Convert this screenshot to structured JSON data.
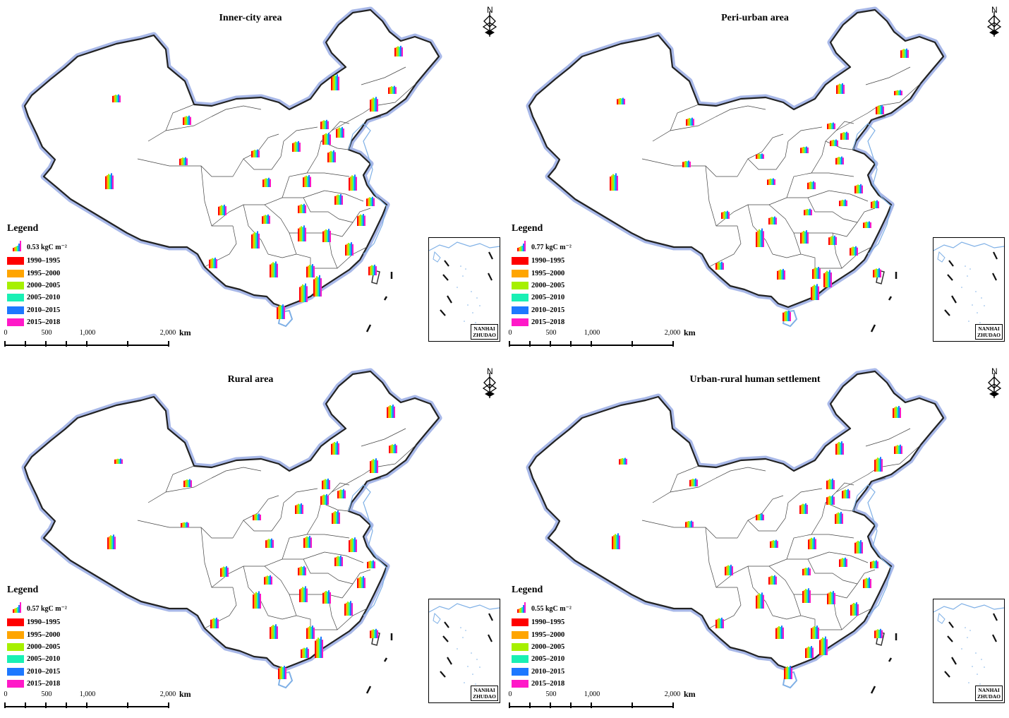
{
  "colors": {
    "period_colors": [
      "#ff0000",
      "#ffa500",
      "#a6f000",
      "#19f0b4",
      "#1e78ff",
      "#ff19c8"
    ],
    "boundary": "#222222",
    "coast_halo": "#a8b8e8",
    "water": "#7fb0e6"
  },
  "legend": {
    "title": "Legend",
    "periods": [
      "1990–1995",
      "1995–2000",
      "2000–2005",
      "2005–2010",
      "2010–2015",
      "2015–2018"
    ]
  },
  "north_label": "N",
  "inset_label": [
    "NANHAI",
    "ZHUDAO"
  ],
  "scale": {
    "labels": [
      "0",
      "500",
      "1,000",
      "2,000"
    ],
    "unit": "km"
  },
  "panels": [
    {
      "title": "Inner-city area",
      "scale_value": "0.53 kgC m⁻²"
    },
    {
      "title": "Peri-urban area",
      "scale_value": "0.77 kgC m⁻²"
    },
    {
      "title": "Rural area",
      "scale_value": "0.57 kgC m⁻²"
    },
    {
      "title": "Urban-rural human settlement",
      "scale_value": "0.55 kgC m⁻²"
    }
  ]
}
